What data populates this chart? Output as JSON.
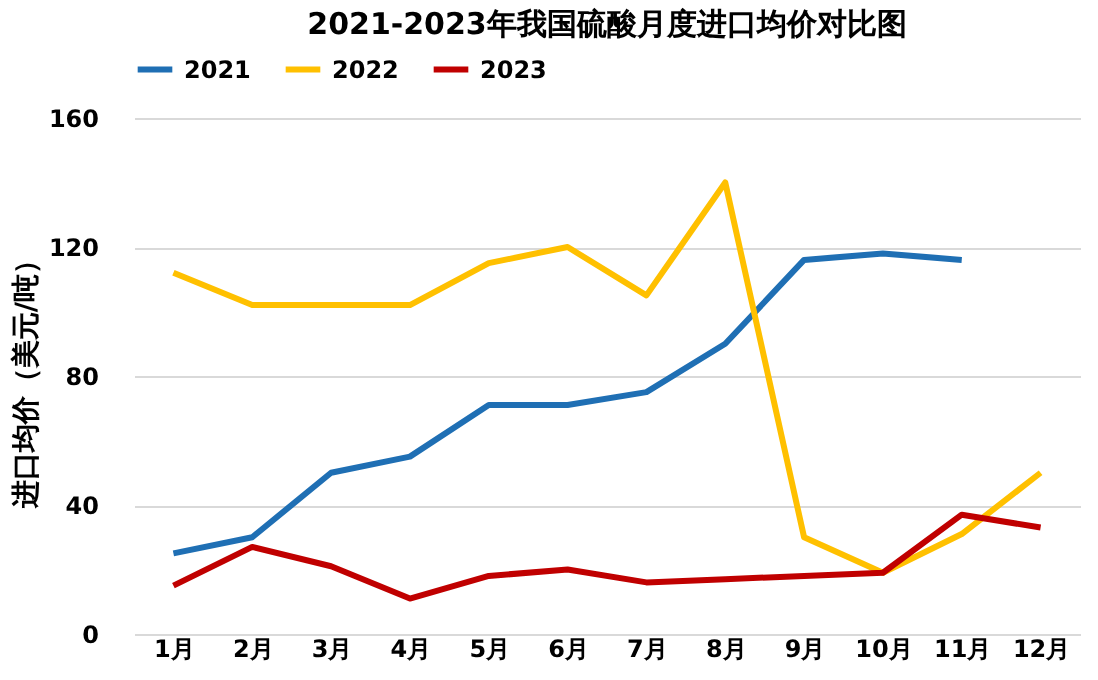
{
  "chart_data": {
    "type": "line",
    "title": "2021-2023年我国硫酸月度进口均价对比图",
    "ylabel": "进口均价（美元/吨）",
    "categories": [
      "1月",
      "2月",
      "3月",
      "4月",
      "5月",
      "6月",
      "7月",
      "8月",
      "9月",
      "10月",
      "11月",
      "12月"
    ],
    "series": [
      {
        "name": "2021",
        "color": "#1f6fb4",
        "values": [
          25,
          30,
          50,
          55,
          71,
          71,
          75,
          90,
          116,
          118,
          116,
          null
        ]
      },
      {
        "name": "2022",
        "color": "#ffc000",
        "values": [
          112,
          102,
          102,
          102,
          115,
          120,
          105,
          140,
          30,
          19,
          31,
          50
        ]
      },
      {
        "name": "2023",
        "color": "#c00000",
        "values": [
          15,
          27,
          21,
          11,
          18,
          20,
          16,
          17,
          18,
          19,
          37,
          33
        ]
      }
    ],
    "ylim": [
      0,
      160
    ],
    "yticks": [
      0,
      40,
      80,
      120,
      160
    ],
    "grid": "y",
    "legend": "top",
    "marker": "none",
    "line_style": "solid"
  }
}
